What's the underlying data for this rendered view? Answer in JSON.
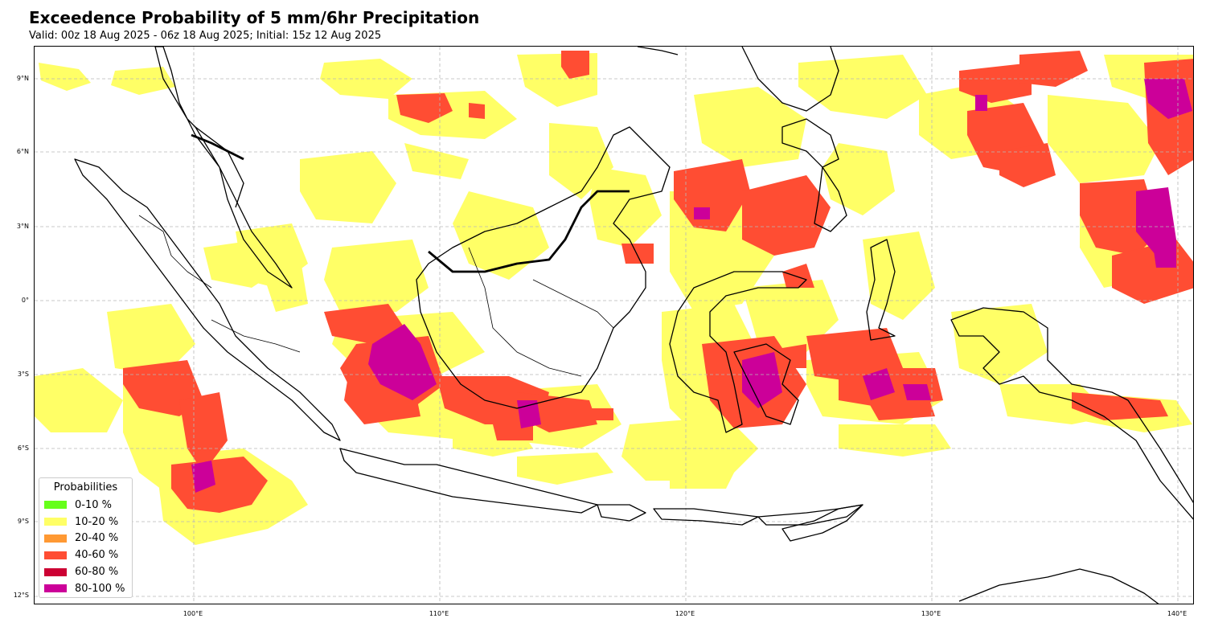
{
  "title": "Exceedence Probability of 5 mm/6hr Precipitation",
  "subtitle": "Valid: 00z 18 Aug 2025 - 06z 18 Aug 2025; Initial: 15z 12 Aug 2025",
  "axes": {
    "lat_labels": [
      "9°N",
      "6°N",
      "3°N",
      "0°",
      "3°S",
      "6°S",
      "9°S",
      "12°S"
    ],
    "lon_labels": [
      "100°E",
      "110°E",
      "120°E",
      "130°E",
      "140°E"
    ],
    "grid": "dashed"
  },
  "legend": {
    "title": "Probabilities",
    "items": [
      {
        "label": "0-10 %",
        "color": "#66ff1a"
      },
      {
        "label": "10-20 %",
        "color": "#ffff66"
      },
      {
        "label": "20-40 %",
        "color": "#ff9933"
      },
      {
        "label": "40-60 %",
        "color": "#ff4d33"
      },
      {
        "label": "60-80 %",
        "color": "#cc0033"
      },
      {
        "label": "80-100 %",
        "color": "#cc0099"
      }
    ]
  },
  "map_extent": {
    "lon": [
      93.5,
      140.7
    ],
    "lat": [
      -12.5,
      10.3
    ]
  }
}
